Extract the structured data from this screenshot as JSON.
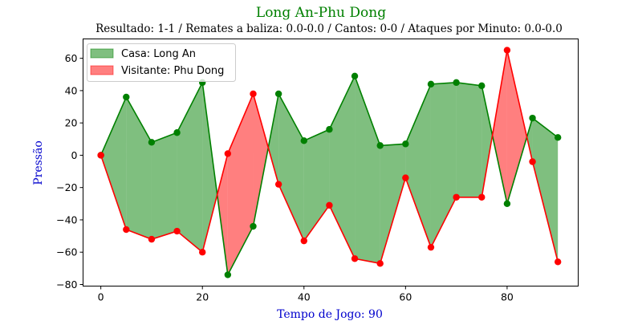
{
  "chart_data": {
    "type": "area",
    "title": "Long An-Phu Dong",
    "subtitle": "Resultado: 1-1 / Remates a baliza: 0.0-0.0 / Cantos: 0-0 / Ataques por Minuto: 0.0-0.0",
    "xlabel": "Tempo de Jogo: 90",
    "ylabel": "Pressão",
    "xlim": [
      -3.5,
      94
    ],
    "ylim": [
      -81,
      72
    ],
    "xticks": [
      0,
      20,
      40,
      60,
      80
    ],
    "yticks": [
      -80,
      -60,
      -40,
      -20,
      0,
      20,
      40,
      60
    ],
    "x": [
      0,
      5,
      10,
      15,
      20,
      25,
      30,
      35,
      40,
      45,
      50,
      55,
      60,
      65,
      70,
      75,
      80,
      85,
      90
    ],
    "series": [
      {
        "name": "Casa: Long An",
        "values": [
          0,
          36,
          8,
          14,
          45,
          -74,
          -44,
          38,
          9,
          16,
          49,
          6,
          7,
          44,
          45,
          43,
          -30,
          23,
          11
        ]
      },
      {
        "name": "Visitante: Phu Dong",
        "values": [
          0,
          -46,
          -52,
          -47,
          -60,
          1,
          38,
          -18,
          -53,
          -31,
          -64,
          -67,
          -14,
          -57,
          -26,
          -26,
          65,
          -4,
          -66
        ]
      }
    ],
    "legend_position": "upper-left",
    "grid": false
  },
  "colors": {
    "title": "#008000",
    "axis_label": "#0000cd",
    "home_line": "#008000",
    "home_fill": "#008000",
    "away_line": "#ff0000",
    "away_fill": "#ff0000",
    "text": "#000000"
  }
}
